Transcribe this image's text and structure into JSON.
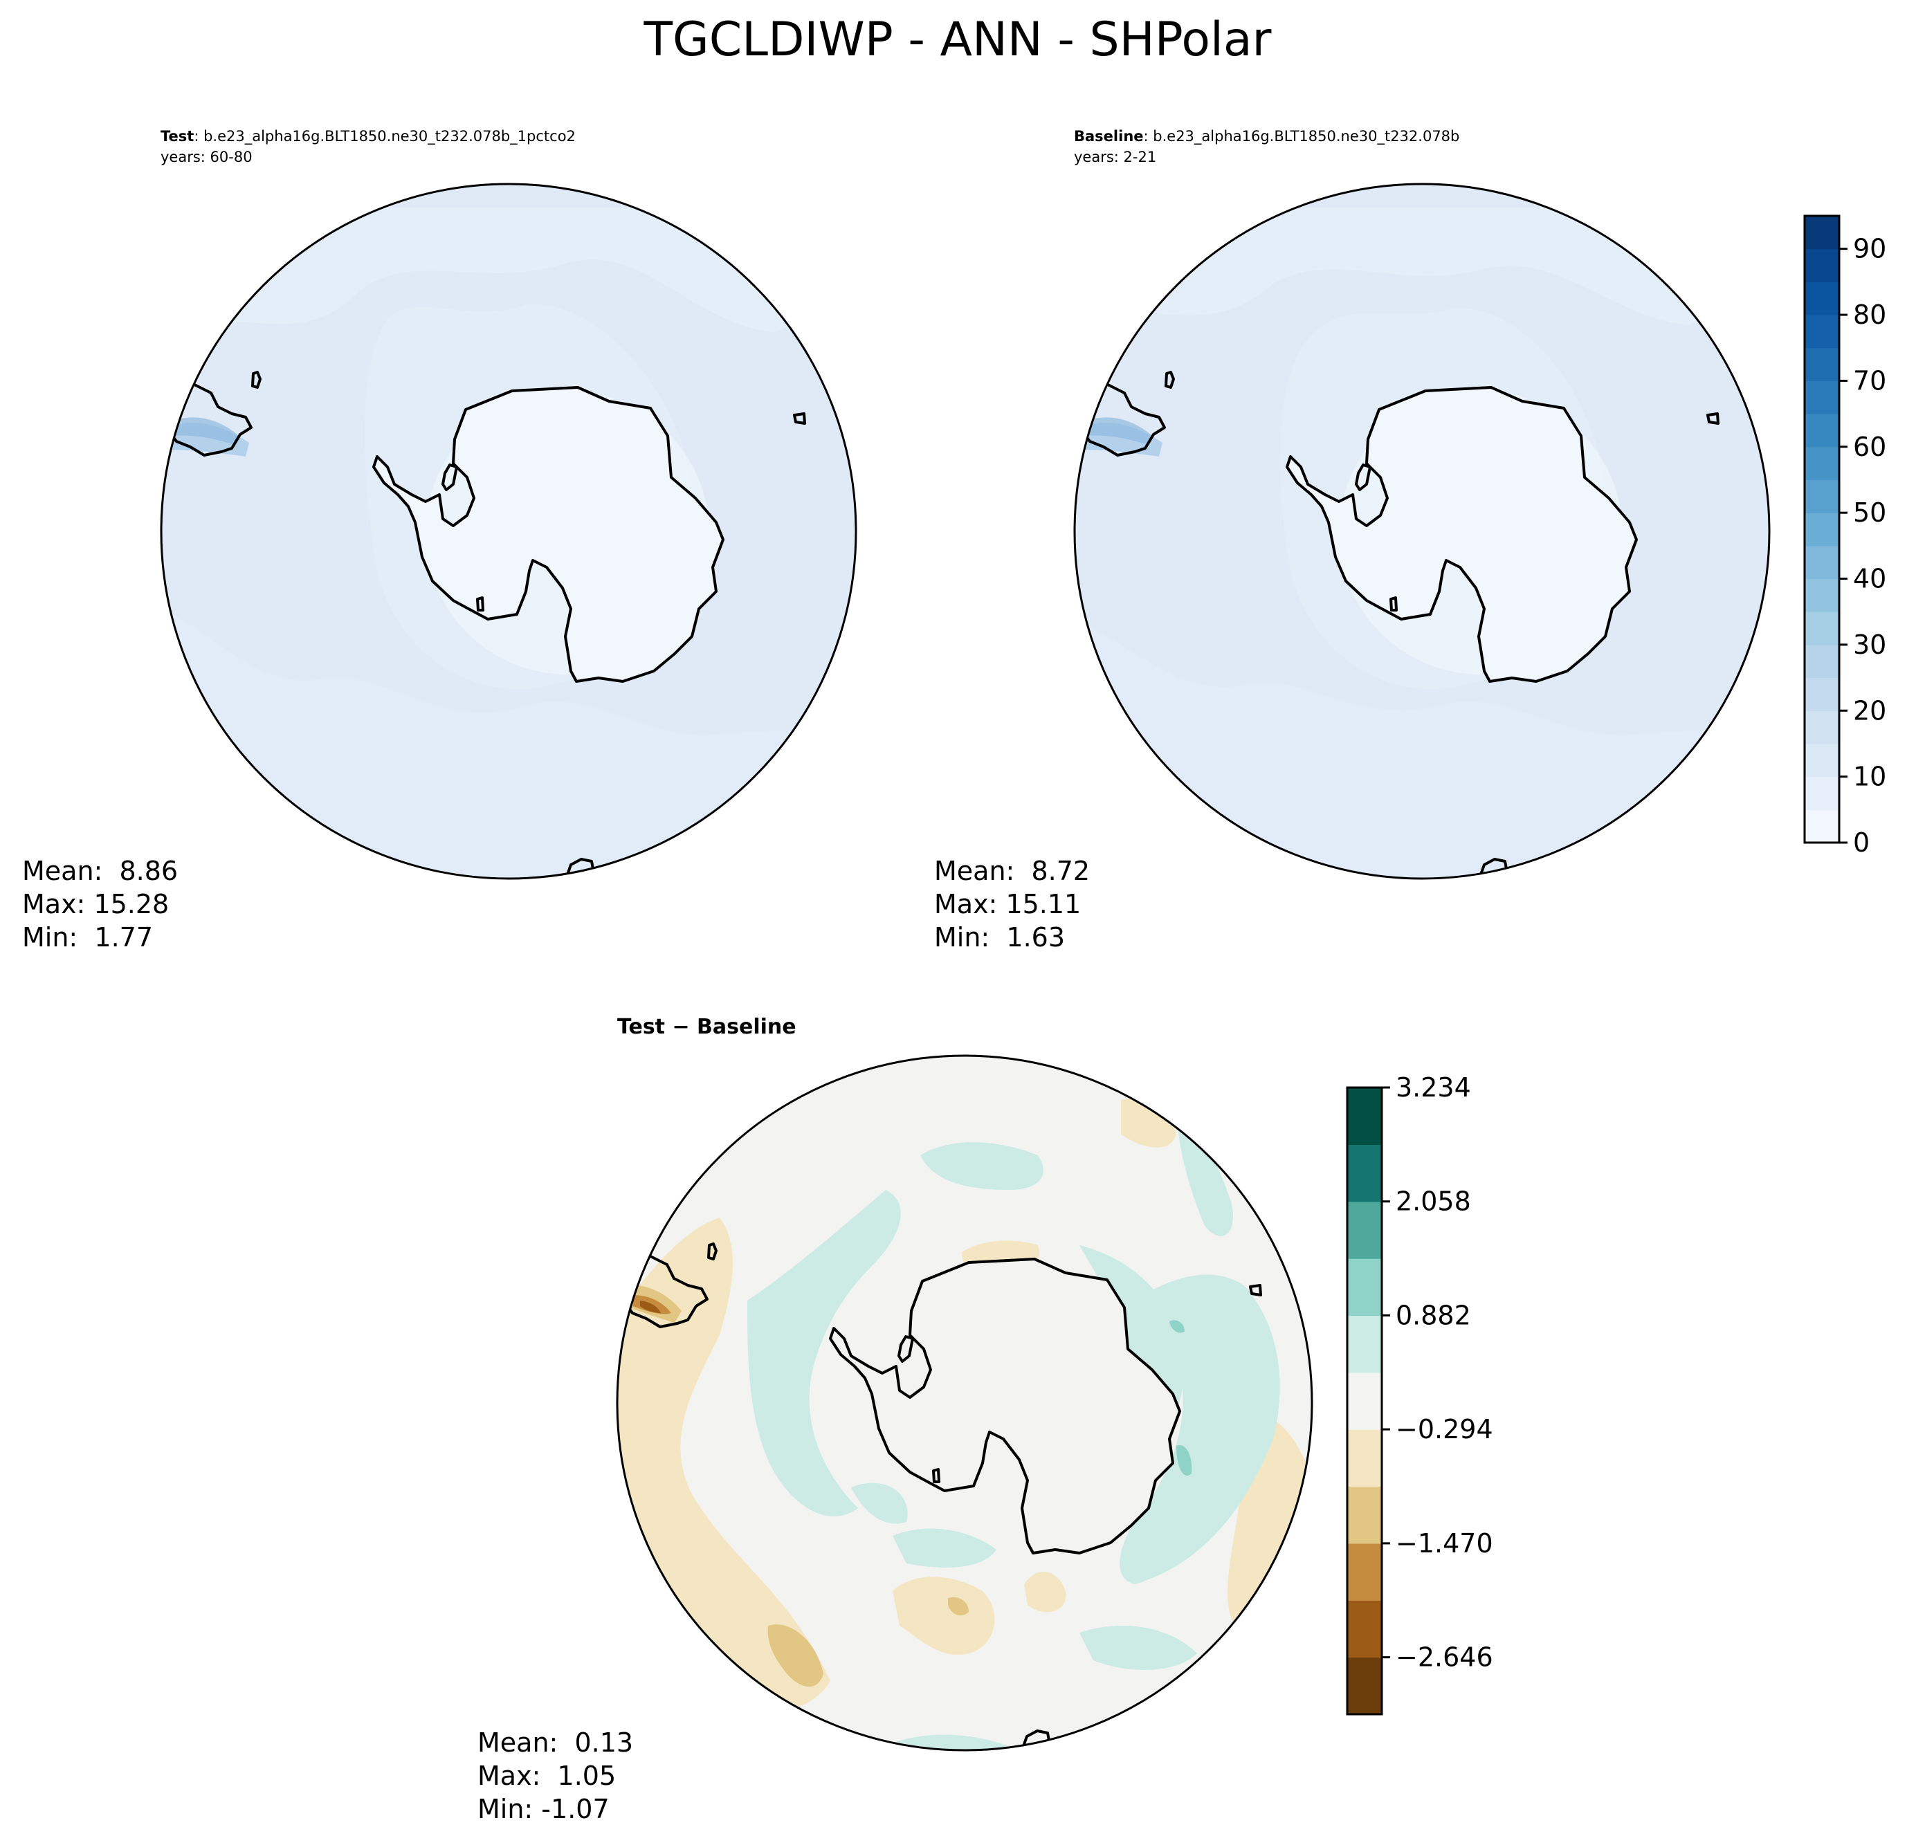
{
  "title": "TGCLDIWP - ANN - SHPolar",
  "panels": [
    {
      "id": "test",
      "label_bold": "Test",
      "label_rest": ": b.e23_alpha16g.BLT1850.ne30_t232.078b_1pctco2",
      "years": "years: 60-80",
      "stats": [
        "Mean:  8.86",
        "Max: 15.28",
        "Min:  1.77"
      ]
    },
    {
      "id": "baseline",
      "label_bold": "Baseline",
      "label_rest": ": b.e23_alpha16g.BLT1850.ne30_t232.078b",
      "years": "years: 2-21",
      "stats": [
        "Mean:  8.72",
        "Max: 15.11",
        "Min:  1.63"
      ]
    },
    {
      "id": "diff",
      "label": "Test − Baseline",
      "stats": [
        "Mean:  0.13",
        "Max:  1.05",
        "Min: -1.07"
      ]
    }
  ],
  "colorbar_main": {
    "colormap": "Blues",
    "range": [
      0,
      95
    ],
    "levels": [
      0,
      5,
      10,
      15,
      20,
      25,
      30,
      35,
      40,
      45,
      50,
      55,
      60,
      65,
      70,
      75,
      80,
      85,
      90,
      95
    ],
    "ticks": [
      "0",
      "10",
      "20",
      "30",
      "40",
      "50",
      "60",
      "70",
      "80",
      "90"
    ],
    "colors": [
      "#f2f7fd",
      "#e6eff9",
      "#dbe8f6",
      "#d0e2f2",
      "#c4daee",
      "#b5d3e9",
      "#a6cee4",
      "#93c4df",
      "#7fb8da",
      "#6aaed6",
      "#58a1cf",
      "#4693c7",
      "#3787c0",
      "#2a7ab9",
      "#1f6db1",
      "#1561a9",
      "#0b559f",
      "#08488e",
      "#083a7a"
    ]
  },
  "colorbar_diff": {
    "colormap": "BrBG",
    "range": [
      -3.234,
      3.234
    ],
    "ticks": [
      "3.234",
      "2.058",
      "0.882",
      "−0.294",
      "−1.470",
      "−2.646"
    ],
    "colors": [
      "#6a3d0a",
      "#9b5b17",
      "#c58c3f",
      "#e2c684",
      "#f5e6c3",
      "#f3f4f2",
      "#ccebe5",
      "#8fd3c8",
      "#4ea89c",
      "#14766e",
      "#024f43"
    ]
  },
  "map_colors": {
    "ocean_fill": "#dfeaf6",
    "ocean_band": "#e7f0fa",
    "antarctica_fill": "#f2f7fd",
    "diff_background": "#f3f4f2",
    "diff_positive": "#ccebe5",
    "diff_negative": "#f5e6c3",
    "coastline": "#000000"
  }
}
